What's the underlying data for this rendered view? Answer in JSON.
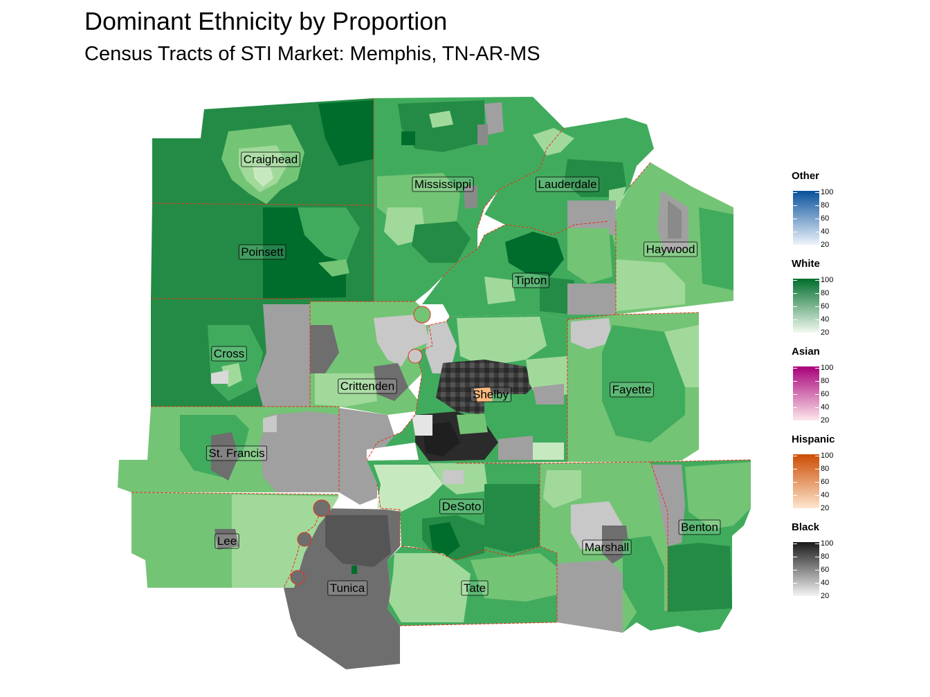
{
  "title": "Dominant Ethnicity by Proportion",
  "subtitle": "Census Tracts of STI Market: Memphis, TN-AR-MS",
  "colors": {
    "boundary": "#e8301c",
    "white_1": "#e5f5e0",
    "white_2": "#a1d99b",
    "white_3": "#74c476",
    "white_4": "#41ab5d",
    "white_5": "#238b45",
    "white_6": "#006d2c",
    "black_1": "#f0f0f0",
    "black_2": "#c8c8c8",
    "black_3": "#a0a0a0",
    "black_4": "#6e6e6e",
    "black_5": "#444444",
    "black_6": "#222222",
    "hispanic": "#fdae6b"
  },
  "counties": [
    {
      "name": "Craighead"
    },
    {
      "name": "Mississippi"
    },
    {
      "name": "Lauderdale"
    },
    {
      "name": "Poinsett"
    },
    {
      "name": "Haywood"
    },
    {
      "name": "Tipton"
    },
    {
      "name": "Cross"
    },
    {
      "name": "Crittenden"
    },
    {
      "name": "Shelby"
    },
    {
      "name": "Fayette"
    },
    {
      "name": "St. Francis"
    },
    {
      "name": "DeSoto"
    },
    {
      "name": "Benton"
    },
    {
      "name": "Marshall"
    },
    {
      "name": "Lee"
    },
    {
      "name": "Tunica"
    },
    {
      "name": "Tate"
    }
  ],
  "legend": [
    {
      "name": "Other",
      "low": "#eef4fb",
      "high": "#08519c",
      "ticks": [
        "100",
        "80",
        "60",
        "40",
        "20"
      ]
    },
    {
      "name": "White",
      "low": "#f2faf0",
      "high": "#006d2c",
      "ticks": [
        "100",
        "80",
        "60",
        "40",
        "20"
      ]
    },
    {
      "name": "Asian",
      "low": "#fde7ea",
      "high": "#a8007a",
      "ticks": [
        "100",
        "80",
        "60",
        "40",
        "20"
      ]
    },
    {
      "name": "Hispanic",
      "low": "#fee6cf",
      "high": "#cc4c02",
      "ticks": [
        "100",
        "80",
        "60",
        "40",
        "20"
      ]
    },
    {
      "name": "Black",
      "low": "#f4f4f4",
      "high": "#1a1a1a",
      "ticks": [
        "100",
        "80",
        "60",
        "40",
        "20"
      ]
    }
  ]
}
